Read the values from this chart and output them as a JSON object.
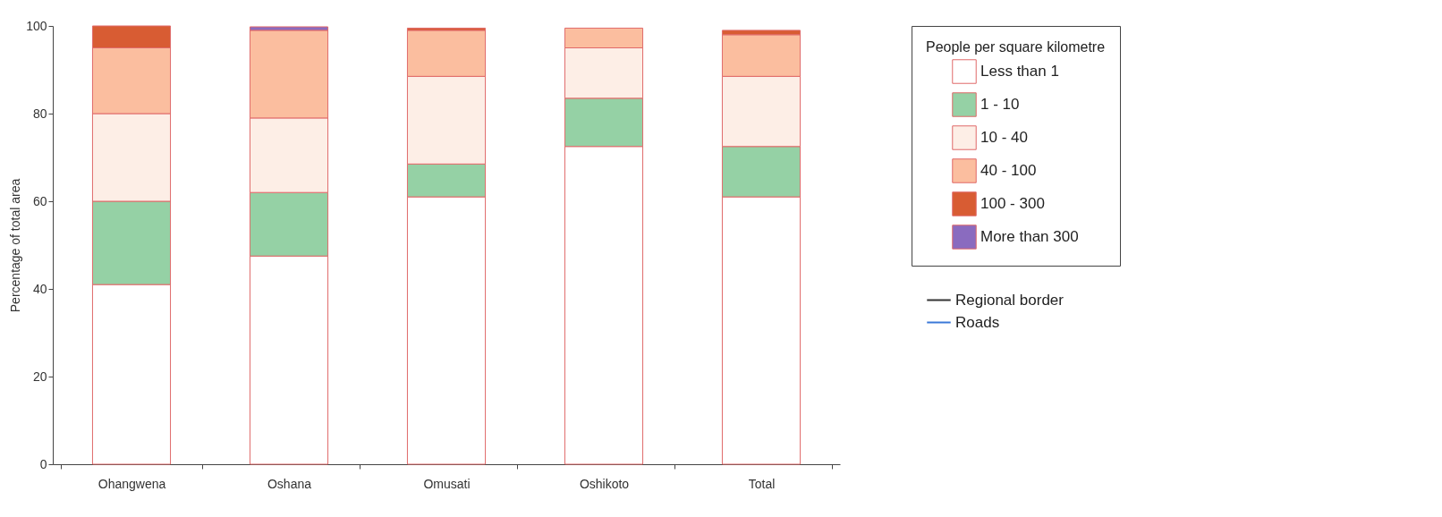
{
  "chart_data": {
    "type": "bar",
    "stacked": true,
    "ylabel": "Percentage of total area",
    "legend_title": "People per square kilometre",
    "legend": "right",
    "categories": [
      "Ohangwena",
      "Oshana",
      "Omusati",
      "Oshikoto",
      "Total"
    ],
    "ylim": [
      0,
      100
    ],
    "yticks": [
      0,
      20,
      40,
      60,
      80,
      100
    ],
    "grid": false,
    "series": [
      {
        "name": "Less than 1",
        "color": "#ffffff",
        "values": [
          41,
          47.5,
          61,
          72.5,
          61
        ]
      },
      {
        "name": "1 - 10",
        "color": "#95d1a5",
        "values": [
          19,
          14.5,
          7.5,
          11,
          11.5
        ]
      },
      {
        "name": "10 - 40",
        "color": "#fdeee6",
        "values": [
          20,
          17,
          20,
          11.5,
          16
        ]
      },
      {
        "name": "40 - 100",
        "color": "#fbbe9f",
        "values": [
          15,
          20,
          10.5,
          4.5,
          9.5
        ]
      },
      {
        "name": "100 - 300",
        "color": "#d85c33",
        "values": [
          5,
          0,
          0.5,
          0,
          1
        ]
      },
      {
        "name": "More than 300",
        "color": "#8a6bbf",
        "values": [
          0,
          0.8,
          0,
          0,
          0
        ]
      },
      {
        "name": "Regional border",
        "type": "line",
        "color": "#333333",
        "values": [
          null,
          null,
          null,
          null,
          null
        ]
      },
      {
        "name": "Roads",
        "type": "line",
        "color": "#3a78d8",
        "values": [
          null,
          null,
          null,
          null,
          null
        ]
      }
    ]
  }
}
